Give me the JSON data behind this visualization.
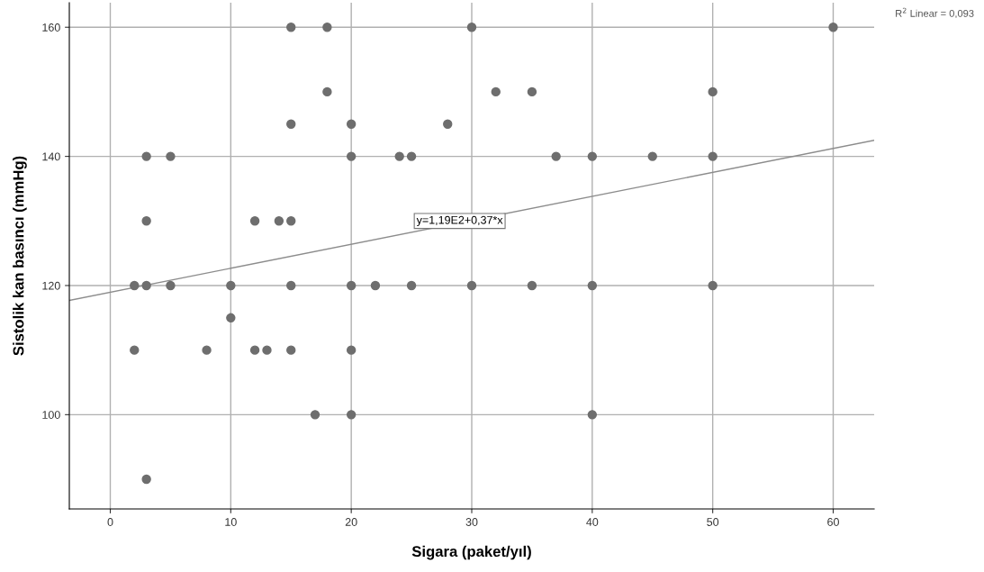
{
  "chart_data": {
    "type": "scatter",
    "xlabel": "Sigara (paket/yıl)",
    "ylabel": "Sistolik kan basıncı (mmHg)",
    "xlim": [
      -3.4,
      63.4
    ],
    "ylim": [
      85.4,
      163.8
    ],
    "xticks": [
      0,
      10,
      20,
      30,
      40,
      50,
      60
    ],
    "yticks": [
      100,
      120,
      140,
      160
    ],
    "grid": true,
    "series": [
      {
        "marker": "circle",
        "color": "#6e6e6e",
        "x": [
          2,
          2,
          3,
          3,
          3,
          3,
          5,
          5,
          8,
          10,
          10,
          12,
          12,
          13,
          14,
          15,
          15,
          15,
          15,
          15,
          17,
          18,
          18,
          20,
          20,
          20,
          20,
          20,
          22,
          24,
          25,
          25,
          28,
          30,
          30,
          32,
          35,
          35,
          37,
          40,
          40,
          40,
          45,
          50,
          50,
          50,
          60
        ],
        "values": [
          120,
          110,
          140,
          130,
          120,
          90,
          140,
          120,
          110,
          120,
          115,
          130,
          110,
          110,
          130,
          160,
          145,
          130,
          120,
          110,
          100,
          160,
          150,
          145,
          140,
          120,
          110,
          100,
          120,
          140,
          140,
          120,
          145,
          160,
          120,
          150,
          150,
          120,
          140,
          140,
          120,
          100,
          140,
          150,
          140,
          120,
          160
        ]
      },
      {
        "type": "line",
        "color": "#8c8c8c",
        "x": [
          -3.4,
          63.4
        ],
        "values": [
          117.7,
          142.5
        ]
      }
    ],
    "annotations": [
      {
        "text": "y=1,19E2+0,37*x",
        "x": 29,
        "y": 130
      },
      "R$^{2}$ Linear = 0,093"
    ]
  }
}
